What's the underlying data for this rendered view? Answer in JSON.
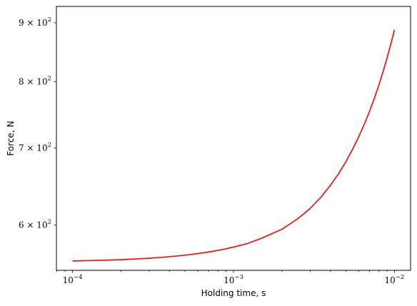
{
  "chart_data": {
    "type": "line",
    "xlabel": "Holding time, s",
    "ylabel": "Force, N",
    "xscale": "log",
    "yscale": "log",
    "xlim": [
      7.94e-05,
      0.0126
    ],
    "ylim": [
      548,
      930
    ],
    "grid": false,
    "x_ticks": [
      {
        "value": 0.0001,
        "mantissa": "10",
        "exp": "−4"
      },
      {
        "value": 0.001,
        "mantissa": "10",
        "exp": "−3"
      },
      {
        "value": 0.01,
        "mantissa": "10",
        "exp": "−2"
      }
    ],
    "y_ticks": [
      {
        "value": 600,
        "coef": "6",
        "exp": "2"
      },
      {
        "value": 700,
        "coef": "7",
        "exp": "2"
      },
      {
        "value": 800,
        "coef": "8",
        "exp": "2"
      },
      {
        "value": 900,
        "coef": "9",
        "exp": "2"
      }
    ],
    "series": [
      {
        "color": "#ff0000",
        "x": [
          0.0001,
          0.0002,
          0.0003,
          0.0004,
          0.0005,
          0.0006,
          0.0007,
          0.0008,
          0.0009,
          0.001,
          0.0012,
          0.0015,
          0.002,
          0.0025,
          0.003,
          0.0035,
          0.004,
          0.0045,
          0.005,
          0.0055,
          0.006,
          0.0065,
          0.007,
          0.0075,
          0.008,
          0.0085,
          0.009,
          0.0095,
          0.01
        ],
        "y": [
          558.3,
          559.8,
          561.4,
          563.2,
          564.9,
          566.7,
          568.5,
          570.3,
          572.2,
          574.1,
          577.8,
          584.5,
          595.0,
          607.5,
          620.5,
          634.7,
          649.8,
          665.2,
          681.4,
          698.6,
          716.1,
          734.4,
          753.5,
          773.3,
          794.2,
          816.0,
          838.6,
          862.5,
          887.3
        ]
      }
    ]
  }
}
